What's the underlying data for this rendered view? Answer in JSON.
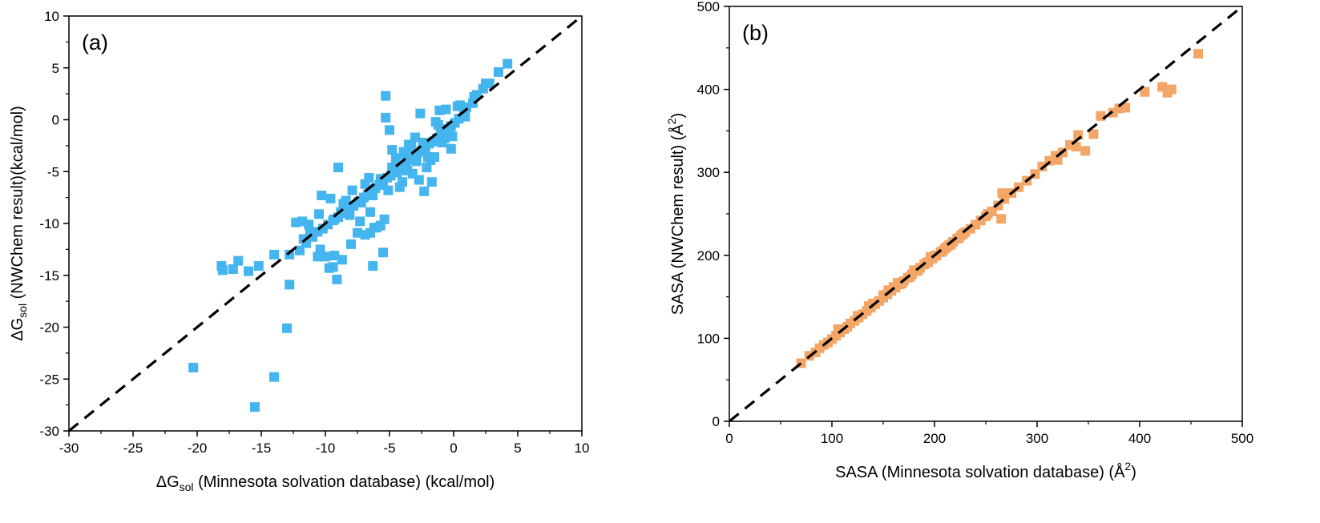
{
  "chart_data": [
    {
      "type": "scatter",
      "panel_label": "(a)",
      "xlabel": {
        "pre": "ΔG",
        "sub": "sol",
        "post": " (Minnesota solvation database) (kcal/mol)"
      },
      "ylabel": {
        "pre": "ΔG",
        "sub": "sol",
        "post": " (NWChem result)(kcal/mol)"
      },
      "xlim": [
        -30,
        10
      ],
      "ylim": [
        -30,
        10
      ],
      "xticks": [
        -30,
        -25,
        -20,
        -15,
        -10,
        -5,
        0,
        5,
        10
      ],
      "yticks": [
        -30,
        -25,
        -20,
        -15,
        -10,
        -5,
        0,
        5,
        10
      ],
      "grid": false,
      "marker": "square",
      "color": "#45b5ef",
      "reference_line": {
        "style": "dashed",
        "color": "#000000",
        "from": [
          -30,
          -30
        ],
        "to": [
          10,
          10
        ]
      },
      "series": [
        {
          "name": "ΔG_sol",
          "x": [
            4.2,
            3.5,
            2.8,
            2.3,
            1.8,
            1.5,
            1.0,
            0.8,
            0.4,
            0.1,
            -0.2,
            -0.5,
            -0.8,
            -1.0,
            -1.3,
            -1.6,
            -1.9,
            -2.2,
            -2.5,
            -2.8,
            -3.1,
            -3.4,
            -3.7,
            -4.0,
            -4.3,
            -4.6,
            -4.9,
            -5.2,
            -5.5,
            -5.8,
            -6.1,
            -6.4,
            -6.7,
            -7.0,
            -7.4,
            -7.8,
            -8.2,
            -8.6,
            -9.0,
            -9.4,
            -9.8,
            -10.2,
            -10.6,
            -11.0,
            -11.5,
            -12.0,
            -0.3,
            -0.9,
            -1.5,
            -2.1,
            -2.7,
            -3.3,
            -3.9,
            -4.5,
            -5.1,
            -5.7,
            -6.3,
            -6.9,
            -0.6,
            -1.2,
            -1.8,
            -2.4,
            -3.0,
            -3.6,
            -4.2,
            -4.8,
            0.3,
            0.9,
            1.6,
            2.5,
            -0.1,
            -1.1,
            -2.6,
            -3.5,
            -5.3,
            -6.6,
            -7.2,
            -8.8,
            -9.6,
            -10.5,
            -2.0,
            -1.4,
            -0.7,
            -5.3,
            -5.0,
            -4.0,
            -3.2,
            -2.3,
            -1.7,
            -0.2,
            0.5,
            -6.0,
            -7.5,
            -8.0,
            -9.3,
            -10.3,
            -11.2,
            -11.8,
            -12.3,
            -9.0,
            -8.4,
            -7.9,
            -6.5,
            -6.2,
            -5.5,
            -4.8,
            -10.0,
            -9.7,
            -8.7,
            -10.6,
            -9.3,
            -8.1,
            -5.4,
            -6.3,
            -9.4,
            -11.3,
            -12.8,
            -14.0,
            -15.2,
            -16.0,
            -16.8,
            -18.1,
            -18.0,
            -17.2,
            -12.8,
            -13.0,
            -14.0,
            -20.3,
            -15.5,
            -6.5,
            -7.3,
            -8.6,
            -9.1,
            -5.7,
            -6.9,
            -10.4,
            -11.7,
            -0.4,
            -2.9,
            -3.8,
            -4.4
          ],
          "y": [
            5.4,
            4.6,
            3.5,
            3.0,
            2.4,
            1.6,
            1.2,
            0.8,
            0.1,
            -0.3,
            -0.6,
            -0.9,
            -1.2,
            -1.4,
            -1.8,
            -2.1,
            -2.3,
            -2.7,
            -3.0,
            -3.2,
            -3.5,
            -3.8,
            -4.1,
            -4.4,
            -4.8,
            -5.0,
            -5.4,
            -5.6,
            -6.0,
            -6.3,
            -6.6,
            -6.9,
            -7.2,
            -7.5,
            -7.9,
            -8.3,
            -8.6,
            -9.0,
            -9.4,
            -9.7,
            -10.1,
            -10.5,
            -10.8,
            -11.3,
            -11.9,
            -12.6,
            -1.0,
            -2.2,
            -3.6,
            -4.6,
            -5.8,
            -2.6,
            -3.1,
            -3.7,
            -6.8,
            -5.7,
            -7.3,
            -6.2,
            1.0,
            -0.5,
            -3.9,
            -2.2,
            -1.7,
            -4.9,
            -6.5,
            -2.9,
            1.3,
            0.3,
            2.2,
            3.5,
            -1.6,
            0.9,
            0.6,
            -2.4,
            0.2,
            -5.6,
            -8.0,
            -8.9,
            -7.6,
            -9.1,
            -3.6,
            -0.2,
            -1.8,
            2.3,
            -1.0,
            -6.0,
            -5.2,
            -6.9,
            -6.0,
            -2.8,
            1.4,
            -10.4,
            -10.9,
            -12.0,
            -9.6,
            -7.3,
            -11.0,
            -9.8,
            -9.9,
            -4.6,
            -7.8,
            -6.8,
            -10.9,
            -10.4,
            -12.8,
            -4.6,
            -13.2,
            -14.3,
            -13.5,
            -13.2,
            -13.1,
            -9.2,
            -9.6,
            -14.1,
            -14.2,
            -10.1,
            -13.0,
            -13.0,
            -14.1,
            -14.6,
            -13.6,
            -14.1,
            -14.5,
            -14.4,
            -15.9,
            -20.1,
            -24.8,
            -23.9,
            -27.7,
            -8.9,
            -9.8,
            -8.1,
            -15.4,
            -10.2,
            -11.1,
            -12.5,
            -11.5,
            -1.6,
            -4.0,
            -3.3,
            -5.1
          ]
        }
      ]
    },
    {
      "type": "scatter",
      "panel_label": "(b)",
      "xlabel": {
        "pre": "SASA  (Minnesota solvation database) (Å",
        "sup": "2",
        "post": ")"
      },
      "ylabel": {
        "pre": "SASA (NWChem result) (Å",
        "sup": "2",
        "post": ")"
      },
      "xlim": [
        0,
        500
      ],
      "ylim": [
        0,
        500
      ],
      "xticks": [
        0,
        100,
        200,
        300,
        400,
        500
      ],
      "yticks": [
        0,
        100,
        200,
        300,
        400,
        500
      ],
      "grid": false,
      "marker": "square",
      "color": "#f4a667",
      "reference_line": {
        "style": "dashed",
        "color": "#000000",
        "from": [
          0,
          0
        ],
        "to": [
          500,
          500
        ]
      },
      "series": [
        {
          "name": "SASA",
          "x": [
            70,
            78,
            84,
            88,
            92,
            96,
            100,
            104,
            108,
            112,
            115,
            118,
            122,
            126,
            130,
            134,
            138,
            142,
            146,
            150,
            154,
            158,
            162,
            166,
            170,
            174,
            178,
            182,
            186,
            190,
            194,
            198,
            202,
            206,
            210,
            214,
            218,
            222,
            226,
            230,
            235,
            240,
            245,
            250,
            256,
            262,
            268,
            275,
            282,
            290,
            298,
            305,
            312,
            318,
            325,
            332,
            338,
            347,
            355,
            362,
            374,
            380,
            386,
            405,
            422,
            427,
            431,
            457,
            106,
            125,
            140,
            155,
            160,
            168,
            176,
            184,
            192,
            200,
            208,
            216,
            224,
            252,
            266,
            320,
            340,
            265,
            180,
            196,
            212,
            228,
            136,
            150,
            164
          ],
          "y": [
            70,
            79,
            83,
            88,
            92,
            95,
            99,
            103,
            107,
            111,
            114,
            118,
            121,
            125,
            129,
            133,
            137,
            141,
            145,
            149,
            153,
            157,
            161,
            165,
            169,
            173,
            177,
            181,
            185,
            189,
            192,
            196,
            200,
            204,
            208,
            212,
            216,
            220,
            224,
            228,
            232,
            237,
            242,
            247,
            253,
            260,
            268,
            275,
            282,
            290,
            298,
            307,
            314,
            320,
            324,
            333,
            331,
            326,
            346,
            368,
            372,
            377,
            378,
            397,
            403,
            396,
            400,
            443,
            111,
            127,
            142,
            158,
            162,
            166,
            174,
            182,
            191,
            199,
            205,
            213,
            221,
            250,
            275,
            315,
            345,
            244,
            182,
            198,
            210,
            226,
            139,
            152,
            167
          ]
        }
      ]
    }
  ]
}
